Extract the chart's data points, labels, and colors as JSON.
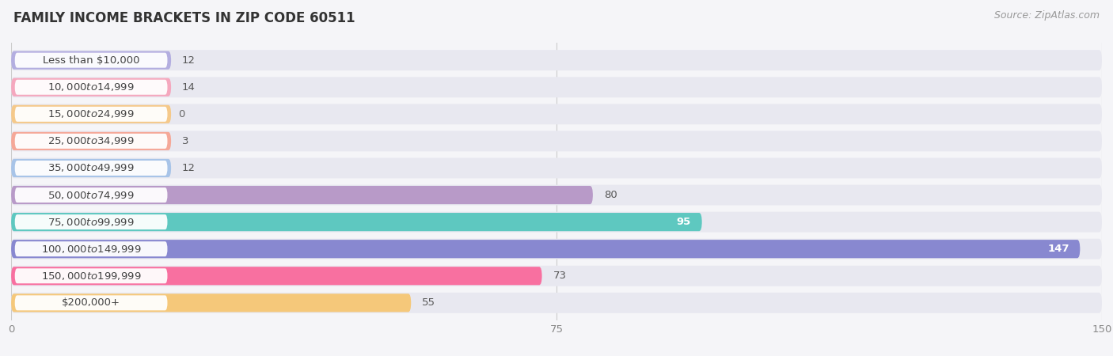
{
  "title": "FAMILY INCOME BRACKETS IN ZIP CODE 60511",
  "source": "Source: ZipAtlas.com",
  "categories": [
    "Less than $10,000",
    "$10,000 to $14,999",
    "$15,000 to $24,999",
    "$25,000 to $34,999",
    "$35,000 to $49,999",
    "$50,000 to $74,999",
    "$75,000 to $99,999",
    "$100,000 to $149,999",
    "$150,000 to $199,999",
    "$200,000+"
  ],
  "values": [
    12,
    14,
    0,
    3,
    12,
    80,
    95,
    147,
    73,
    55
  ],
  "bar_colors": [
    "#b3aee0",
    "#f5a8be",
    "#f5c98a",
    "#f5a898",
    "#a8c4e8",
    "#b89ac8",
    "#5ec8c0",
    "#8888d0",
    "#f870a0",
    "#f5c87a"
  ],
  "background_color": "#f5f5f8",
  "bar_bg_color": "#e8e8f0",
  "row_bg_color": "#ededf2",
  "xlim": [
    0,
    150
  ],
  "xticks": [
    0,
    75,
    150
  ],
  "title_fontsize": 12,
  "label_fontsize": 9.5,
  "value_fontsize": 9.5
}
